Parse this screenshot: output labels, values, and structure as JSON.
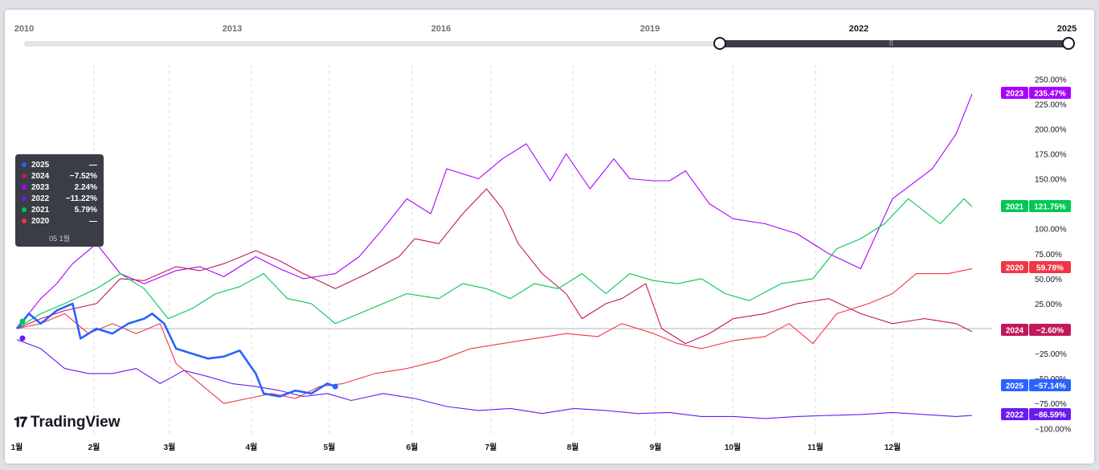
{
  "range_bar": {
    "years": [
      "2010",
      "2013",
      "2016",
      "2019",
      "2022",
      "2025"
    ],
    "selected_start": "2020",
    "selected_end": "2025"
  },
  "tooltip": {
    "rows": [
      {
        "year": "2025",
        "value": "—",
        "color": "#2962ff"
      },
      {
        "year": "2024",
        "value": "−7.52%",
        "color": "#c2185b"
      },
      {
        "year": "2023",
        "value": "2.24%",
        "color": "#aa00ff"
      },
      {
        "year": "2022",
        "value": "−11.22%",
        "color": "#6a1bf0"
      },
      {
        "year": "2021",
        "value": "5.79%",
        "color": "#00c853"
      },
      {
        "year": "2020",
        "value": "—",
        "color": "#f23645"
      }
    ],
    "date": "05 1월"
  },
  "logo": {
    "text": "TradingView"
  },
  "chart_data": {
    "type": "line",
    "x_ticks": [
      "1월",
      "2월",
      "3월",
      "4월",
      "5월",
      "6월",
      "7월",
      "8월",
      "9월",
      "10월",
      "11월",
      "12월"
    ],
    "y_ticks": [
      "250.00%",
      "225.00%",
      "200.00%",
      "175.00%",
      "150.00%",
      "125.00%",
      "100.00%",
      "75.00%",
      "50.00%",
      "25.00%",
      "0.00%",
      "−25.00%",
      "−50.00%",
      "−75.00%",
      "−100.00%"
    ],
    "ylim": [
      -100,
      250
    ],
    "x_unit": "month (1 = Jan 1, 13 = end of Dec)",
    "grid_vertical_dashed": true,
    "zero_line": true,
    "series": [
      {
        "name": "2023",
        "color": "#aa00ff",
        "label": "2023",
        "last_value": "235.47%",
        "points": [
          [
            1.0,
            0
          ],
          [
            1.3,
            30
          ],
          [
            1.5,
            45
          ],
          [
            1.7,
            65
          ],
          [
            2.0,
            85
          ],
          [
            2.3,
            55
          ],
          [
            2.6,
            45
          ],
          [
            3.0,
            58
          ],
          [
            3.3,
            62
          ],
          [
            3.6,
            52
          ],
          [
            4.0,
            72
          ],
          [
            4.3,
            60
          ],
          [
            4.6,
            50
          ],
          [
            5.0,
            55
          ],
          [
            5.3,
            72
          ],
          [
            5.6,
            100
          ],
          [
            5.9,
            130
          ],
          [
            6.2,
            115
          ],
          [
            6.4,
            160
          ],
          [
            6.8,
            150
          ],
          [
            7.1,
            170
          ],
          [
            7.4,
            185
          ],
          [
            7.7,
            148
          ],
          [
            7.9,
            175
          ],
          [
            8.2,
            140
          ],
          [
            8.5,
            170
          ],
          [
            8.7,
            150
          ],
          [
            9.0,
            148
          ],
          [
            9.2,
            148
          ],
          [
            9.4,
            158
          ],
          [
            9.7,
            125
          ],
          [
            10.0,
            110
          ],
          [
            10.4,
            105
          ],
          [
            10.8,
            95
          ],
          [
            11.2,
            75
          ],
          [
            11.6,
            60
          ],
          [
            12.0,
            130
          ],
          [
            12.5,
            160
          ],
          [
            12.8,
            195
          ],
          [
            13.0,
            235
          ]
        ]
      },
      {
        "name": "2024",
        "color": "#c2185b",
        "label": "2024",
        "last_value": "−2.60%",
        "points": [
          [
            1.0,
            0
          ],
          [
            1.3,
            10
          ],
          [
            1.6,
            18
          ],
          [
            2.0,
            25
          ],
          [
            2.3,
            50
          ],
          [
            2.6,
            48
          ],
          [
            3.0,
            62
          ],
          [
            3.3,
            58
          ],
          [
            3.6,
            65
          ],
          [
            4.0,
            78
          ],
          [
            4.3,
            68
          ],
          [
            4.6,
            55
          ],
          [
            5.0,
            40
          ],
          [
            5.4,
            55
          ],
          [
            5.8,
            72
          ],
          [
            6.0,
            90
          ],
          [
            6.3,
            85
          ],
          [
            6.6,
            115
          ],
          [
            6.9,
            140
          ],
          [
            7.1,
            120
          ],
          [
            7.3,
            85
          ],
          [
            7.6,
            55
          ],
          [
            7.9,
            35
          ],
          [
            8.1,
            10
          ],
          [
            8.4,
            25
          ],
          [
            8.6,
            30
          ],
          [
            8.9,
            45
          ],
          [
            9.1,
            0
          ],
          [
            9.4,
            -15
          ],
          [
            9.7,
            -5
          ],
          [
            10.0,
            10
          ],
          [
            10.4,
            15
          ],
          [
            10.8,
            25
          ],
          [
            11.2,
            30
          ],
          [
            11.6,
            15
          ],
          [
            12.0,
            5
          ],
          [
            12.4,
            10
          ],
          [
            12.8,
            5
          ],
          [
            13.0,
            -3
          ]
        ]
      },
      {
        "name": "2021",
        "color": "#00c853",
        "label": "2021",
        "last_value": "121.75%",
        "points": [
          [
            1.0,
            0
          ],
          [
            1.3,
            15
          ],
          [
            1.6,
            25
          ],
          [
            2.0,
            40
          ],
          [
            2.3,
            55
          ],
          [
            2.6,
            40
          ],
          [
            2.9,
            10
          ],
          [
            3.2,
            20
          ],
          [
            3.5,
            35
          ],
          [
            3.8,
            42
          ],
          [
            4.1,
            55
          ],
          [
            4.4,
            30
          ],
          [
            4.7,
            25
          ],
          [
            5.0,
            5
          ],
          [
            5.3,
            15
          ],
          [
            5.6,
            25
          ],
          [
            5.9,
            35
          ],
          [
            6.3,
            30
          ],
          [
            6.6,
            45
          ],
          [
            6.9,
            40
          ],
          [
            7.2,
            30
          ],
          [
            7.5,
            45
          ],
          [
            7.8,
            40
          ],
          [
            8.1,
            55
          ],
          [
            8.4,
            35
          ],
          [
            8.7,
            55
          ],
          [
            9.0,
            48
          ],
          [
            9.3,
            45
          ],
          [
            9.6,
            50
          ],
          [
            9.9,
            35
          ],
          [
            10.2,
            28
          ],
          [
            10.6,
            45
          ],
          [
            11.0,
            50
          ],
          [
            11.3,
            80
          ],
          [
            11.6,
            90
          ],
          [
            11.9,
            105
          ],
          [
            12.2,
            130
          ],
          [
            12.6,
            105
          ],
          [
            12.9,
            130
          ],
          [
            13.0,
            122
          ]
        ]
      },
      {
        "name": "2020",
        "color": "#f23645",
        "label": "2020",
        "last_value": "59.78%",
        "points": [
          [
            1.0,
            0
          ],
          [
            1.3,
            5
          ],
          [
            1.6,
            15
          ],
          [
            1.9,
            -5
          ],
          [
            2.2,
            5
          ],
          [
            2.5,
            -5
          ],
          [
            2.8,
            5
          ],
          [
            3.0,
            -35
          ],
          [
            3.3,
            -55
          ],
          [
            3.6,
            -75
          ],
          [
            3.9,
            -70
          ],
          [
            4.2,
            -65
          ],
          [
            4.5,
            -70
          ],
          [
            4.8,
            -58
          ],
          [
            5.1,
            -55
          ],
          [
            5.5,
            -45
          ],
          [
            5.9,
            -40
          ],
          [
            6.3,
            -32
          ],
          [
            6.7,
            -20
          ],
          [
            7.1,
            -15
          ],
          [
            7.5,
            -10
          ],
          [
            7.9,
            -5
          ],
          [
            8.3,
            -8
          ],
          [
            8.6,
            5
          ],
          [
            9.0,
            -5
          ],
          [
            9.3,
            -15
          ],
          [
            9.6,
            -20
          ],
          [
            10.0,
            -12
          ],
          [
            10.4,
            -8
          ],
          [
            10.7,
            5
          ],
          [
            11.0,
            -15
          ],
          [
            11.3,
            15
          ],
          [
            11.7,
            25
          ],
          [
            12.0,
            35
          ],
          [
            12.3,
            55
          ],
          [
            12.7,
            55
          ],
          [
            13.0,
            60
          ]
        ]
      },
      {
        "name": "2022",
        "color": "#6a1bf0",
        "label": "2022",
        "last_value": "−86.59%",
        "points": [
          [
            1.0,
            -11
          ],
          [
            1.3,
            -20
          ],
          [
            1.6,
            -40
          ],
          [
            1.9,
            -45
          ],
          [
            2.2,
            -45
          ],
          [
            2.5,
            -40
          ],
          [
            2.8,
            -55
          ],
          [
            3.1,
            -42
          ],
          [
            3.4,
            -48
          ],
          [
            3.7,
            -55
          ],
          [
            4.0,
            -58
          ],
          [
            4.3,
            -62
          ],
          [
            4.6,
            -68
          ],
          [
            4.9,
            -65
          ],
          [
            5.2,
            -72
          ],
          [
            5.6,
            -65
          ],
          [
            6.0,
            -70
          ],
          [
            6.4,
            -78
          ],
          [
            6.8,
            -82
          ],
          [
            7.2,
            -80
          ],
          [
            7.6,
            -85
          ],
          [
            8.0,
            -80
          ],
          [
            8.4,
            -82
          ],
          [
            8.8,
            -85
          ],
          [
            9.2,
            -84
          ],
          [
            9.6,
            -88
          ],
          [
            10.0,
            -88
          ],
          [
            10.4,
            -90
          ],
          [
            10.8,
            -88
          ],
          [
            11.2,
            -87
          ],
          [
            11.6,
            -86
          ],
          [
            12.0,
            -84
          ],
          [
            12.4,
            -86
          ],
          [
            12.8,
            -88
          ],
          [
            13.0,
            -87
          ]
        ]
      },
      {
        "name": "2025",
        "color": "#2962ff",
        "label": "2025",
        "last_value": "−57.14%",
        "points": [
          [
            1.0,
            0
          ],
          [
            1.15,
            15
          ],
          [
            1.3,
            5
          ],
          [
            1.5,
            18
          ],
          [
            1.7,
            25
          ],
          [
            1.8,
            -10
          ],
          [
            2.0,
            0
          ],
          [
            2.2,
            -5
          ],
          [
            2.4,
            5
          ],
          [
            2.6,
            10
          ],
          [
            2.7,
            15
          ],
          [
            2.85,
            5
          ],
          [
            3.0,
            -20
          ],
          [
            3.2,
            -25
          ],
          [
            3.4,
            -30
          ],
          [
            3.6,
            -28
          ],
          [
            3.8,
            -22
          ],
          [
            4.0,
            -45
          ],
          [
            4.1,
            -65
          ],
          [
            4.3,
            -68
          ],
          [
            4.5,
            -62
          ],
          [
            4.7,
            -65
          ],
          [
            4.9,
            -55
          ],
          [
            5.0,
            -58
          ]
        ]
      }
    ]
  }
}
